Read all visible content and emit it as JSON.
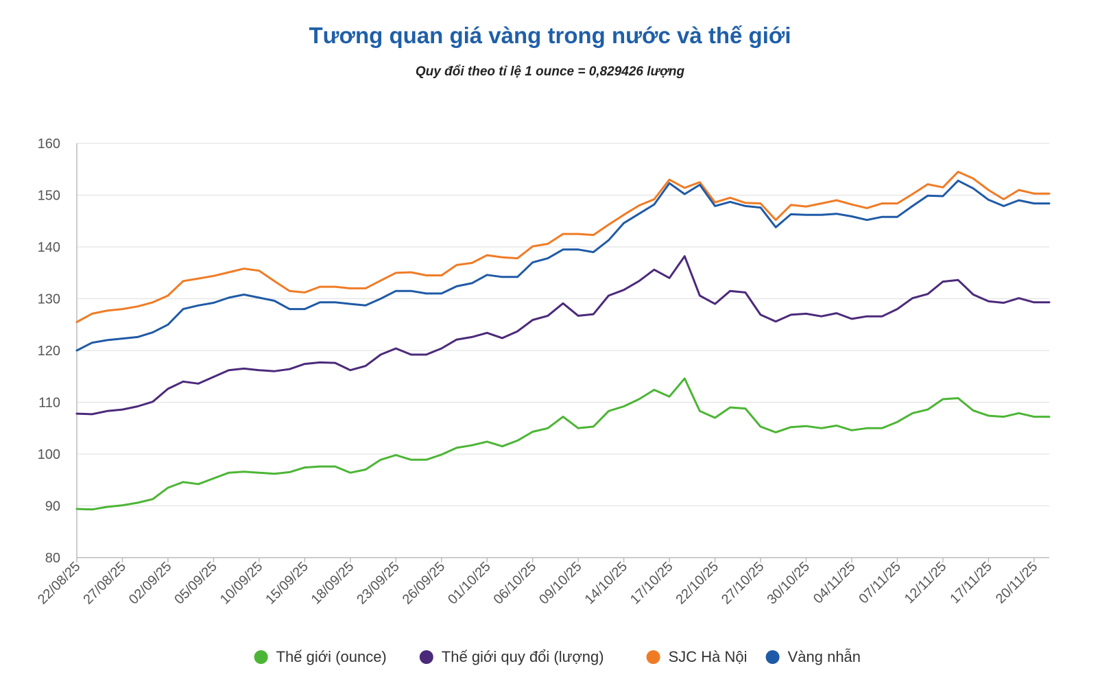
{
  "chart_data": {
    "type": "line",
    "title": "Tương quan giá vàng trong nước và thế giới",
    "subtitle": "Quy đổi theo tỉ lệ 1 ounce = 0,829426 lượng",
    "xlabel": "",
    "ylabel": "",
    "ylim": [
      80,
      160
    ],
    "yticks": [
      80,
      90,
      100,
      110,
      120,
      130,
      140,
      150,
      160
    ],
    "grid": true,
    "legend_position": "bottom",
    "x_tick_labels": [
      "22/08/25",
      "27/08/25",
      "02/09/25",
      "05/09/25",
      "10/09/25",
      "15/09/25",
      "18/09/25",
      "23/09/25",
      "26/09/25",
      "01/10/25",
      "06/10/25",
      "09/10/25",
      "14/10/25",
      "17/10/25",
      "22/10/25",
      "27/10/25",
      "30/10/25",
      "04/11/25",
      "07/11/25",
      "12/11/25",
      "17/11/25",
      "20/11/25"
    ],
    "x_tick_indices": [
      0,
      3,
      6,
      9,
      12,
      15,
      18,
      21,
      24,
      27,
      30,
      33,
      36,
      39,
      42,
      45,
      48,
      51,
      54,
      57,
      60,
      63
    ],
    "point_count": 65,
    "series": [
      {
        "name": "Thế giới (ounce)",
        "color": "#4cb535",
        "values": [
          89.4,
          89.3,
          89.8,
          90.1,
          90.6,
          91.3,
          93.5,
          94.6,
          94.2,
          95.3,
          96.4,
          96.6,
          96.4,
          96.2,
          96.5,
          97.4,
          97.6,
          97.6,
          96.4,
          97.0,
          98.9,
          99.8,
          98.9,
          98.9,
          99.9,
          101.2,
          101.7,
          102.4,
          101.5,
          102.6,
          104.3,
          105.0,
          107.2,
          105.0,
          105.3,
          108.3,
          109.2,
          110.6,
          112.4,
          111.1,
          114.6,
          108.3,
          107.0,
          109.0,
          108.8,
          105.3,
          104.2,
          105.2,
          105.4,
          105.0,
          105.5,
          104.6,
          105.0,
          105.0,
          106.2,
          107.9,
          108.6,
          110.6,
          110.8,
          108.4,
          107.4,
          107.2,
          107.9,
          107.2,
          107.2
        ]
      },
      {
        "name": "Thế giới quy đổi (lượng)",
        "color": "#4b2a7a",
        "values": [
          107.8,
          107.7,
          108.3,
          108.6,
          109.2,
          110.1,
          112.6,
          114.0,
          113.6,
          114.9,
          116.2,
          116.5,
          116.2,
          116.0,
          116.4,
          117.4,
          117.7,
          117.6,
          116.2,
          117.0,
          119.2,
          120.4,
          119.2,
          119.2,
          120.4,
          122.1,
          122.6,
          123.4,
          122.4,
          123.7,
          125.9,
          126.7,
          129.1,
          126.7,
          127.0,
          130.6,
          131.7,
          133.4,
          135.6,
          134.0,
          138.2,
          130.6,
          129.0,
          131.5,
          131.2,
          126.9,
          125.6,
          126.9,
          127.1,
          126.6,
          127.2,
          126.1,
          126.6,
          126.6,
          128.0,
          130.1,
          130.9,
          133.3,
          133.6,
          130.8,
          129.5,
          129.2,
          130.1,
          129.3,
          129.3
        ]
      },
      {
        "name": "SJC Hà Nội",
        "color": "#f07b25",
        "values": [
          125.5,
          127.1,
          127.7,
          128.0,
          128.5,
          129.3,
          130.6,
          133.4,
          133.9,
          134.4,
          135.1,
          135.8,
          135.4,
          133.4,
          131.5,
          131.2,
          132.3,
          132.3,
          132.0,
          132.0,
          133.5,
          135.0,
          135.1,
          134.5,
          134.5,
          136.5,
          136.9,
          138.4,
          138.0,
          137.8,
          140.1,
          140.6,
          142.5,
          142.5,
          142.3,
          144.3,
          146.2,
          148.0,
          149.2,
          153.0,
          151.4,
          152.5,
          148.6,
          149.5,
          148.5,
          148.4,
          145.2,
          148.1,
          147.8,
          148.4,
          149.0,
          148.2,
          147.5,
          148.4,
          148.4,
          150.2,
          152.1,
          151.5,
          154.5,
          153.2,
          151.0,
          149.2,
          151.0,
          150.3,
          150.3
        ]
      },
      {
        "name": "Vàng nhẫn",
        "color": "#1f5aa6",
        "values": [
          120.0,
          121.5,
          122.0,
          122.3,
          122.6,
          123.5,
          125.0,
          128.0,
          128.7,
          129.2,
          130.2,
          130.8,
          130.2,
          129.6,
          128.0,
          128.0,
          129.3,
          129.3,
          129.0,
          128.7,
          130.0,
          131.5,
          131.5,
          131.0,
          131.0,
          132.4,
          133.0,
          134.6,
          134.2,
          134.2,
          137.0,
          137.8,
          139.5,
          139.5,
          139.0,
          141.3,
          144.6,
          146.4,
          148.2,
          152.3,
          150.2,
          152.0,
          147.9,
          148.7,
          147.9,
          147.6,
          143.8,
          146.3,
          146.2,
          146.2,
          146.4,
          145.9,
          145.2,
          145.8,
          145.8,
          147.9,
          149.9,
          149.8,
          152.8,
          151.3,
          149.1,
          147.9,
          149.0,
          148.4,
          148.4
        ]
      }
    ]
  }
}
